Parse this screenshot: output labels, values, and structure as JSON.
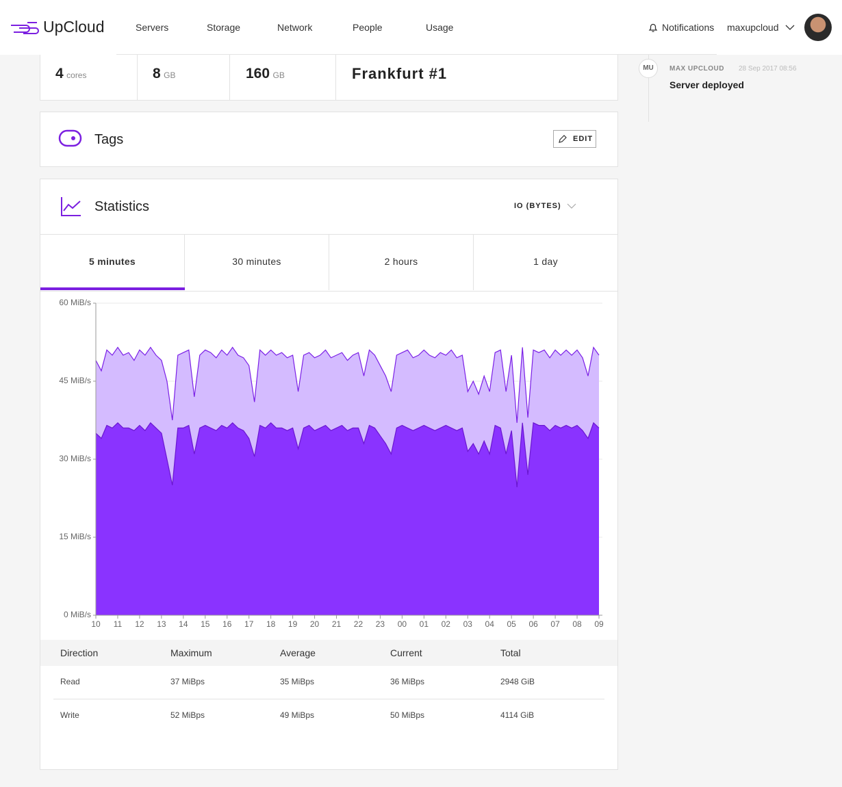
{
  "header": {
    "logo": "UpCloud",
    "nav": [
      "Servers",
      "Storage",
      "Network",
      "People",
      "Usage"
    ],
    "notifications": "Notifications",
    "user": "maxupcloud"
  },
  "specs": [
    {
      "value": 4,
      "unit": "cores"
    },
    {
      "value": 8,
      "unit": "GB"
    },
    {
      "value": 160,
      "unit": "GB"
    },
    {
      "value": "Frankfurt #1"
    }
  ],
  "tags": {
    "title": "Tags",
    "button": "EDIT"
  },
  "statistics": {
    "title": "Statistics",
    "metric": "IO (BYTES)",
    "tabs": [
      "5 minutes",
      "30 minutes",
      "2 hours",
      "1 day"
    ],
    "active_tab": 0
  },
  "chart_data": {
    "type": "area",
    "x": [
      0,
      0.25,
      0.5,
      0.75,
      1,
      1.25,
      1.5,
      1.75,
      2,
      2.25,
      2.5,
      2.75,
      3,
      3.25,
      3.5,
      3.75,
      4,
      4.25,
      4.5,
      4.75,
      5,
      5.25,
      5.5,
      5.75,
      6,
      6.25,
      6.5,
      6.75,
      7,
      7.25,
      7.5,
      7.75,
      8,
      8.25,
      8.5,
      8.75,
      9,
      9.25,
      9.5,
      9.75,
      10,
      10.25,
      10.5,
      10.75,
      11,
      11.25,
      11.5,
      11.75,
      12,
      12.25,
      12.5,
      12.75,
      13,
      13.25,
      13.5,
      13.75,
      14,
      14.25,
      14.5,
      14.75,
      15,
      15.25,
      15.5,
      15.75,
      16,
      16.25,
      16.5,
      16.75,
      17,
      17.25,
      17.5,
      17.75,
      18,
      18.25,
      18.5,
      18.75,
      19,
      19.25,
      19.5,
      19.75,
      20,
      20.25,
      20.5,
      20.75,
      21,
      21.25,
      21.5,
      21.75,
      22,
      22.25,
      22.5,
      22.75,
      23
    ],
    "xlim": [
      0,
      23
    ],
    "xticks": [
      {
        "value": 0,
        "label": "10"
      },
      {
        "value": 1,
        "label": "11"
      },
      {
        "value": 2,
        "label": "12"
      },
      {
        "value": 3,
        "label": "13"
      },
      {
        "value": 4,
        "label": "14"
      },
      {
        "value": 5,
        "label": "15"
      },
      {
        "value": 6,
        "label": "16"
      },
      {
        "value": 7,
        "label": "17"
      },
      {
        "value": 8,
        "label": "18"
      },
      {
        "value": 9,
        "label": "19"
      },
      {
        "value": 10,
        "label": "20"
      },
      {
        "value": 11,
        "label": "21"
      },
      {
        "value": 12,
        "label": "22"
      },
      {
        "value": 13,
        "label": "23"
      },
      {
        "value": 14,
        "label": "00"
      },
      {
        "value": 15,
        "label": "01"
      },
      {
        "value": 16,
        "label": "02"
      },
      {
        "value": 17,
        "label": "03"
      },
      {
        "value": 18,
        "label": "04"
      },
      {
        "value": 19,
        "label": "05"
      },
      {
        "value": 20,
        "label": "06"
      },
      {
        "value": 21,
        "label": "07"
      },
      {
        "value": 22,
        "label": "08"
      },
      {
        "value": 23,
        "label": "09"
      }
    ],
    "ylim": [
      0,
      60
    ],
    "yticks": [
      {
        "value": 0,
        "label": "0 MiB/s"
      },
      {
        "value": 15,
        "label": "15 MiB/s"
      },
      {
        "value": 30,
        "label": "30 MiB/s"
      },
      {
        "value": 45,
        "label": "45 MiB/s"
      },
      {
        "value": 60,
        "label": "60 MiB/s"
      }
    ],
    "series": [
      {
        "color": "#d4bbff",
        "line_color": "#7a1fe6",
        "values": [
          49,
          47,
          51,
          50,
          51.5,
          50,
          50.5,
          49,
          51,
          50,
          51.5,
          50,
          49,
          45,
          37.5,
          50,
          50.5,
          51,
          42,
          50,
          51,
          50.5,
          49.5,
          51,
          50,
          51.5,
          50,
          49.5,
          48,
          41,
          51,
          50,
          51,
          50,
          50.5,
          49.5,
          50,
          43,
          50,
          50.5,
          49.5,
          50,
          51,
          49.5,
          50,
          50.5,
          49,
          50,
          50.5,
          46,
          51,
          50,
          48,
          46,
          43,
          50,
          50.5,
          51,
          49.5,
          50,
          51,
          50,
          49.5,
          50.5,
          50,
          51,
          49.5,
          50,
          43,
          45,
          42.5,
          46,
          43,
          50.5,
          51,
          43,
          50,
          37,
          51.5,
          38,
          51,
          50.5,
          51,
          49.5,
          51,
          50,
          51,
          50,
          51,
          49.5,
          46,
          51.5,
          50
        ]
      },
      {
        "color": "#8a33ff",
        "line_color": "#6a16d0",
        "values": [
          35,
          34,
          36.5,
          36,
          37,
          36,
          36,
          35.5,
          36.5,
          35.5,
          37,
          36,
          35,
          30,
          25,
          36,
          36,
          36.5,
          31,
          36,
          36.5,
          36,
          35.5,
          36.5,
          36,
          37,
          36,
          35.5,
          34,
          30.5,
          36.5,
          36,
          37,
          36,
          36,
          35.5,
          36,
          32,
          36,
          36.5,
          35.5,
          36,
          36.5,
          35.5,
          36,
          36.5,
          35.5,
          36,
          36,
          33,
          36.5,
          36,
          34.5,
          33,
          31,
          36,
          36.5,
          36,
          35.5,
          36,
          36.5,
          36,
          35.5,
          36,
          36.5,
          36,
          35.5,
          36,
          31.5,
          33,
          31,
          33.5,
          31,
          36.5,
          36,
          31,
          35.5,
          24.6,
          37,
          27,
          37,
          36.5,
          36.5,
          35.5,
          36.5,
          36,
          36.5,
          36,
          36.5,
          35.5,
          34,
          37,
          36
        ]
      }
    ],
    "grid": true
  },
  "table": {
    "columns": [
      "Direction",
      "Maximum",
      "Average",
      "Current",
      "Total"
    ],
    "rows": [
      [
        "Read",
        "37 MiBps",
        "35 MiBps",
        "36 MiBps",
        "2948 GiB"
      ],
      [
        "Write",
        "52 MiBps",
        "49 MiBps",
        "50 MiBps",
        "4114 GiB"
      ]
    ]
  },
  "activity": {
    "initials": "MU",
    "user": "MAX UPCLOUD",
    "date": "28 Sep 2017 08:56",
    "event": "Server deployed"
  }
}
